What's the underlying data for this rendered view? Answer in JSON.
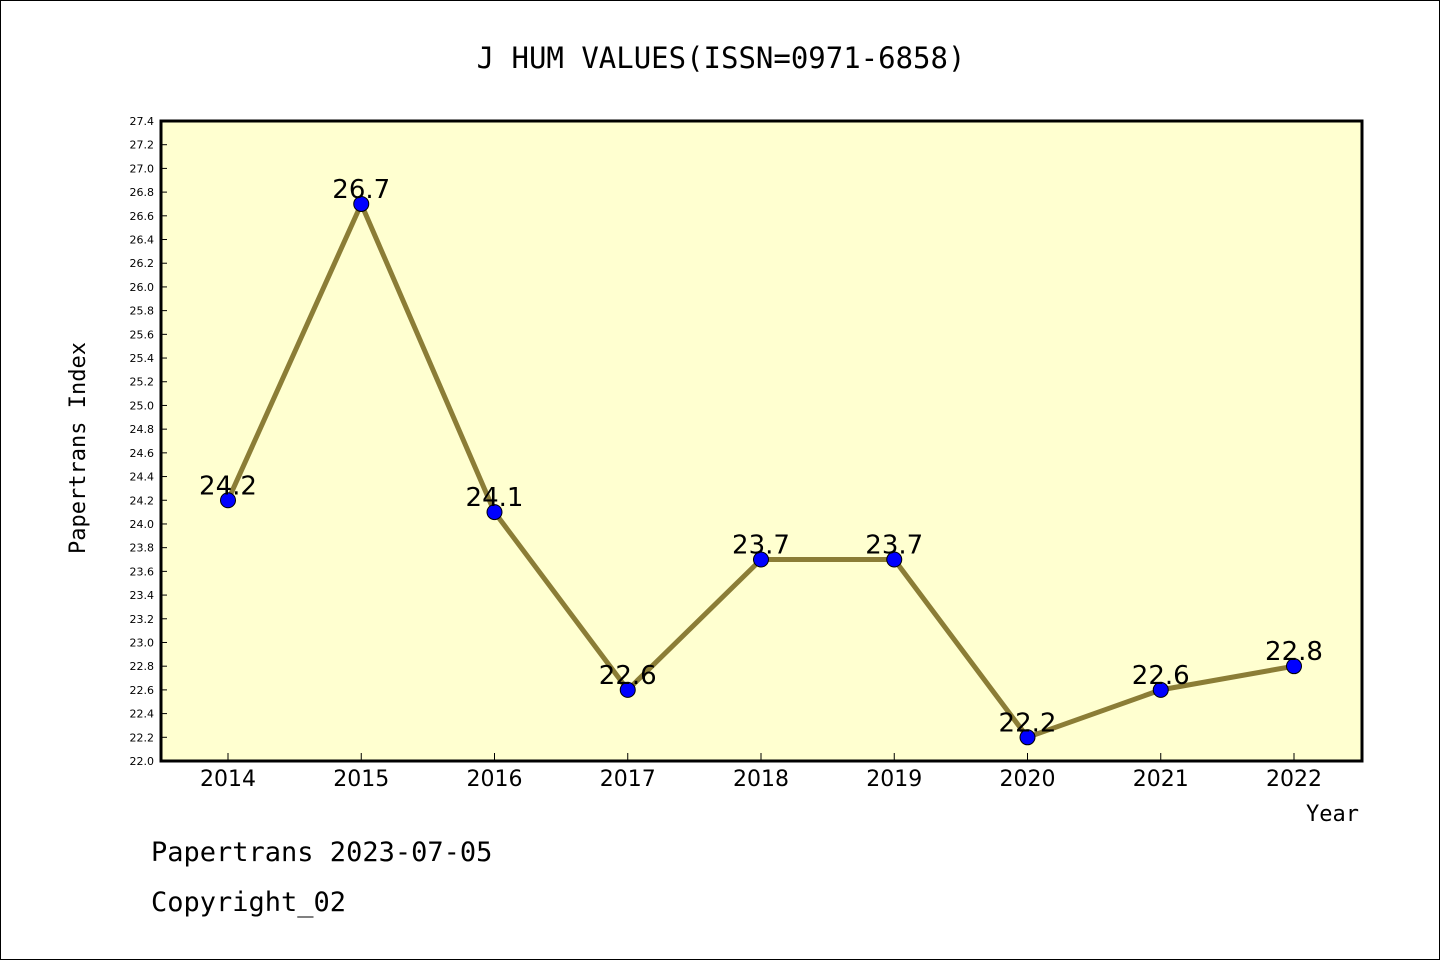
{
  "chart_data": {
    "type": "line",
    "title": "J HUM VALUES(ISSN=0971-6858)",
    "xlabel": "Year",
    "ylabel": "Papertrans Index",
    "categories": [
      "2014",
      "2015",
      "2016",
      "2017",
      "2018",
      "2019",
      "2020",
      "2021",
      "2022"
    ],
    "values": [
      24.2,
      26.7,
      24.1,
      22.6,
      23.7,
      23.7,
      22.2,
      22.6,
      22.8
    ],
    "data_labels": [
      "24.2",
      "26.7",
      "24.1",
      "22.6",
      "23.7",
      "23.7",
      "22.2",
      "22.6",
      "22.8"
    ],
    "ylim": [
      22.0,
      27.4
    ],
    "ytick_step": 0.2,
    "grid": false,
    "line_color": "#8b7d36",
    "marker_color": "#0000ff",
    "plot_background": "#ffffd0"
  },
  "footer": {
    "line1": "Papertrans 2023-07-05",
    "line2": "Copyright_02"
  }
}
